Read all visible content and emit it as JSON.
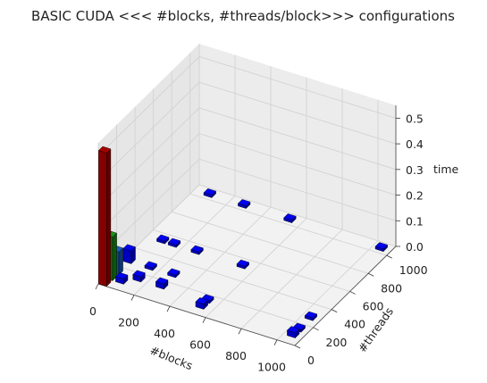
{
  "chart_data": {
    "type": "bar3d",
    "title": "BASIC CUDA <<< #blocks, #threads/block>>> configurations",
    "xlabel": "#blocks",
    "ylabel": "#threads",
    "zlabel": "time",
    "xlim": [
      0,
      1100
    ],
    "ylim": [
      0,
      1100
    ],
    "zlim": [
      0,
      0.55
    ],
    "xticks": [
      "0",
      "200",
      "400",
      "600",
      "800",
      "1000"
    ],
    "yticks": [
      "0",
      "200",
      "400",
      "600",
      "800",
      "1000"
    ],
    "zticks": [
      "0.0",
      "0.1",
      "0.2",
      "0.3",
      "0.4",
      "0.5"
    ],
    "grid": true,
    "bars": [
      {
        "x": 1,
        "y": 1,
        "z": 0.52,
        "color": "#b00000"
      },
      {
        "x": 2,
        "y": 64,
        "z": 0.17,
        "color": "#1a9a1a"
      },
      {
        "x": 4,
        "y": 128,
        "z": 0.09,
        "color": "#1a60d0"
      },
      {
        "x": 8,
        "y": 256,
        "z": 0.05,
        "color": "#0000ff"
      },
      {
        "x": 64,
        "y": 64,
        "z": 0.02,
        "color": "#0000ff"
      },
      {
        "x": 128,
        "y": 128,
        "z": 0.02,
        "color": "#0000ff"
      },
      {
        "x": 128,
        "y": 256,
        "z": 0.01,
        "color": "#0000ff"
      },
      {
        "x": 256,
        "y": 128,
        "z": 0.02,
        "color": "#0000ff"
      },
      {
        "x": 256,
        "y": 256,
        "z": 0.01,
        "color": "#0000ff"
      },
      {
        "x": 512,
        "y": 64,
        "z": 0.02,
        "color": "#0000ff"
      },
      {
        "x": 512,
        "y": 128,
        "z": 0.01,
        "color": "#0000ff"
      },
      {
        "x": 64,
        "y": 512,
        "z": 0.01,
        "color": "#0000ff"
      },
      {
        "x": 128,
        "y": 512,
        "z": 0.01,
        "color": "#0000ff"
      },
      {
        "x": 256,
        "y": 512,
        "z": 0.01,
        "color": "#0000ff"
      },
      {
        "x": 512,
        "y": 512,
        "z": 0.01,
        "color": "#0000ff"
      },
      {
        "x": 64,
        "y": 1024,
        "z": 0.01,
        "color": "#0000ff"
      },
      {
        "x": 256,
        "y": 1024,
        "z": 0.01,
        "color": "#0000ff"
      },
      {
        "x": 512,
        "y": 1024,
        "z": 0.01,
        "color": "#0000ff"
      },
      {
        "x": 1024,
        "y": 64,
        "z": 0.02,
        "color": "#0000ff"
      },
      {
        "x": 1024,
        "y": 128,
        "z": 0.01,
        "color": "#0000ff"
      },
      {
        "x": 1024,
        "y": 256,
        "z": 0.01,
        "color": "#0000ff"
      },
      {
        "x": 1024,
        "y": 1024,
        "z": 0.01,
        "color": "#0000ff"
      }
    ]
  }
}
